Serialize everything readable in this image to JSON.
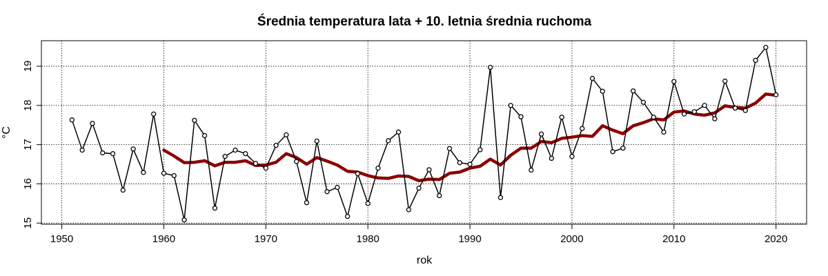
{
  "chart_data": {
    "type": "line",
    "title": "Średnia temperatura lata + 10. letnia średnia ruchoma",
    "xlabel": "rok",
    "ylabel": "°C",
    "xlim": [
      1948,
      2023
    ],
    "ylim": [
      14.97,
      19.65
    ],
    "x_ticks": [
      1950,
      1960,
      1970,
      1980,
      1990,
      2000,
      2010,
      2020
    ],
    "y_ticks": [
      15,
      16,
      17,
      18,
      19
    ],
    "grid": true,
    "colors": {
      "annual": "#000000",
      "moving_average": "#8b0000",
      "grid": "#000000"
    },
    "series": [
      {
        "name": "Średnia temperatura lata",
        "style": "line+points",
        "x": [
          1951,
          1952,
          1953,
          1954,
          1955,
          1956,
          1957,
          1958,
          1959,
          1960,
          1961,
          1962,
          1963,
          1964,
          1965,
          1966,
          1967,
          1968,
          1969,
          1970,
          1971,
          1972,
          1973,
          1974,
          1975,
          1976,
          1977,
          1978,
          1979,
          1980,
          1981,
          1982,
          1983,
          1984,
          1985,
          1986,
          1987,
          1988,
          1989,
          1990,
          1991,
          1992,
          1993,
          1994,
          1995,
          1996,
          1997,
          1998,
          1999,
          2000,
          2001,
          2002,
          2003,
          2004,
          2005,
          2006,
          2007,
          2008,
          2009,
          2010,
          2011,
          2012,
          2013,
          2014,
          2015,
          2016,
          2017,
          2018,
          2019,
          2020
        ],
        "values": [
          17.63,
          16.86,
          17.54,
          16.79,
          16.77,
          15.84,
          16.89,
          16.29,
          17.78,
          16.27,
          16.21,
          15.08,
          17.62,
          17.23,
          15.38,
          16.7,
          16.86,
          16.77,
          16.52,
          16.4,
          16.98,
          17.25,
          16.57,
          15.52,
          17.09,
          15.8,
          15.91,
          15.17,
          16.26,
          15.5,
          16.4,
          17.1,
          17.32,
          15.34,
          15.89,
          16.36,
          15.7,
          16.9,
          16.54,
          16.5,
          16.87,
          18.97,
          15.65,
          18.0,
          17.71,
          16.35,
          17.27,
          16.65,
          17.7,
          16.7,
          17.41,
          18.69,
          18.36,
          16.82,
          16.91,
          18.37,
          18.08,
          17.7,
          17.32,
          18.61,
          17.78,
          17.84,
          18.0,
          17.66,
          18.62,
          17.93,
          17.87,
          19.15,
          19.48,
          18.27
        ]
      },
      {
        "name": "10. letnia średnia ruchoma",
        "style": "thick-line",
        "x": [
          1960,
          1961,
          1962,
          1963,
          1964,
          1965,
          1966,
          1967,
          1968,
          1969,
          1970,
          1971,
          1972,
          1973,
          1974,
          1975,
          1976,
          1977,
          1978,
          1979,
          1980,
          1981,
          1982,
          1983,
          1984,
          1985,
          1986,
          1987,
          1988,
          1989,
          1990,
          1991,
          1992,
          1993,
          1994,
          1995,
          1996,
          1997,
          1998,
          1999,
          2000,
          2001,
          2002,
          2003,
          2004,
          2005,
          2006,
          2007,
          2008,
          2009,
          2010,
          2011,
          2012,
          2013,
          2014,
          2015,
          2016,
          2017,
          2018,
          2019,
          2020
        ],
        "values": [
          16.86,
          16.71,
          16.54,
          16.55,
          16.59,
          16.46,
          16.55,
          16.55,
          16.59,
          16.47,
          16.48,
          16.55,
          16.77,
          16.67,
          16.5,
          16.67,
          16.58,
          16.48,
          16.32,
          16.3,
          16.21,
          16.15,
          16.14,
          16.2,
          16.19,
          16.08,
          16.12,
          16.11,
          16.27,
          16.3,
          16.4,
          16.45,
          16.63,
          16.48,
          16.73,
          16.91,
          16.91,
          17.08,
          17.05,
          17.16,
          17.19,
          17.23,
          17.21,
          17.48,
          17.37,
          17.28,
          17.48,
          17.56,
          17.66,
          17.63,
          17.83,
          17.86,
          17.78,
          17.75,
          17.81,
          17.99,
          17.95,
          17.93,
          18.06,
          18.29,
          18.26
        ]
      }
    ]
  }
}
